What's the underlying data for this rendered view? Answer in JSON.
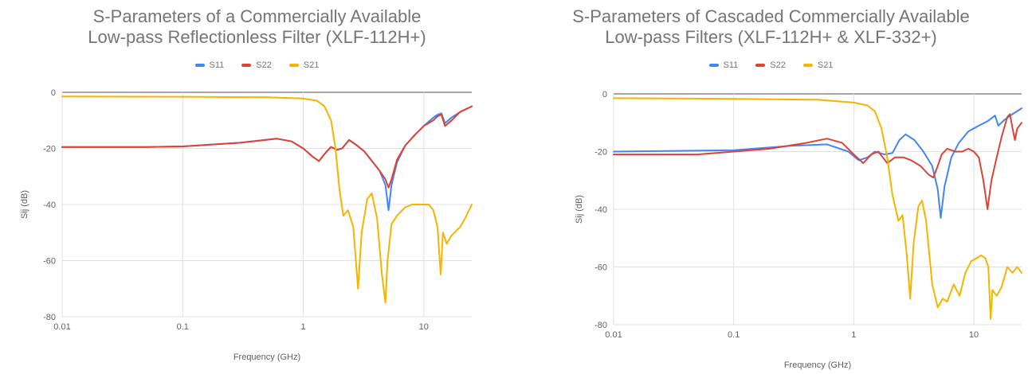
{
  "chart_data": [
    {
      "type": "line",
      "title_lines": [
        "S-Parameters of a Commercially Available",
        "Low-pass Reflectionless Filter (XLF-112H+)"
      ],
      "xlabel": "Frequency (GHz)",
      "ylabel": "Sij (dB)",
      "xscale": "log",
      "xlim": [
        0.01,
        25
      ],
      "ylim": [
        -80,
        0
      ],
      "xticks": [
        "0.01",
        "0.1",
        "1",
        "10"
      ],
      "yticks": [
        "0",
        "-20",
        "-40",
        "-60",
        "-80"
      ],
      "legend_position": "top",
      "series": [
        {
          "name": "S11",
          "color": "#4285f4",
          "points": [
            [
              0.01,
              -19.5
            ],
            [
              0.05,
              -19.5
            ],
            [
              0.1,
              -19.3
            ],
            [
              0.3,
              -18
            ],
            [
              0.6,
              -16.5
            ],
            [
              0.8,
              -17.5
            ],
            [
              1.0,
              -20
            ],
            [
              1.2,
              -23
            ],
            [
              1.35,
              -24.5
            ],
            [
              1.5,
              -22
            ],
            [
              1.7,
              -19.5
            ],
            [
              1.9,
              -20.5
            ],
            [
              2.1,
              -20
            ],
            [
              2.4,
              -17
            ],
            [
              2.8,
              -19
            ],
            [
              3.2,
              -21
            ],
            [
              3.8,
              -25
            ],
            [
              4.3,
              -28
            ],
            [
              4.8,
              -33
            ],
            [
              5.1,
              -42
            ],
            [
              5.4,
              -33
            ],
            [
              6.0,
              -25
            ],
            [
              7.0,
              -19
            ],
            [
              8.5,
              -15
            ],
            [
              10,
              -12
            ],
            [
              12,
              -9
            ],
            [
              13,
              -8
            ],
            [
              14,
              -7.5
            ],
            [
              15,
              -11
            ],
            [
              17,
              -9
            ],
            [
              20,
              -7
            ],
            [
              25,
              -5
            ]
          ]
        },
        {
          "name": "S22",
          "color": "#db4437",
          "points": [
            [
              0.01,
              -19.5
            ],
            [
              0.05,
              -19.5
            ],
            [
              0.1,
              -19.3
            ],
            [
              0.3,
              -18
            ],
            [
              0.6,
              -16.5
            ],
            [
              0.8,
              -17.5
            ],
            [
              1.0,
              -20
            ],
            [
              1.2,
              -23
            ],
            [
              1.35,
              -24.5
            ],
            [
              1.5,
              -22
            ],
            [
              1.7,
              -19.5
            ],
            [
              1.9,
              -20.5
            ],
            [
              2.1,
              -20
            ],
            [
              2.4,
              -17
            ],
            [
              2.8,
              -19
            ],
            [
              3.2,
              -21
            ],
            [
              3.8,
              -25
            ],
            [
              4.3,
              -28
            ],
            [
              4.8,
              -31
            ],
            [
              5.1,
              -34
            ],
            [
              5.4,
              -31
            ],
            [
              6.0,
              -24
            ],
            [
              7.0,
              -19
            ],
            [
              8.5,
              -15
            ],
            [
              10,
              -12
            ],
            [
              12,
              -10
            ],
            [
              13,
              -8.5
            ],
            [
              14,
              -8
            ],
            [
              15,
              -12
            ],
            [
              17,
              -10
            ],
            [
              20,
              -7
            ],
            [
              25,
              -5
            ]
          ]
        },
        {
          "name": "S21",
          "color": "#f4b400",
          "points": [
            [
              0.01,
              -1.5
            ],
            [
              0.1,
              -1.6
            ],
            [
              0.5,
              -1.8
            ],
            [
              1.0,
              -2.2
            ],
            [
              1.3,
              -3
            ],
            [
              1.5,
              -5
            ],
            [
              1.7,
              -10
            ],
            [
              1.85,
              -20
            ],
            [
              2.0,
              -35
            ],
            [
              2.15,
              -44
            ],
            [
              2.35,
              -42
            ],
            [
              2.6,
              -48
            ],
            [
              2.85,
              -70
            ],
            [
              3.05,
              -50
            ],
            [
              3.4,
              -38
            ],
            [
              3.7,
              -36
            ],
            [
              4.1,
              -45
            ],
            [
              4.5,
              -65
            ],
            [
              4.8,
              -75
            ],
            [
              5.0,
              -60
            ],
            [
              5.4,
              -47
            ],
            [
              6.0,
              -44
            ],
            [
              7.0,
              -41
            ],
            [
              8.0,
              -40
            ],
            [
              9.0,
              -40
            ],
            [
              10,
              -40
            ],
            [
              11,
              -40
            ],
            [
              12,
              -42
            ],
            [
              13,
              -48
            ],
            [
              13.8,
              -65
            ],
            [
              14.4,
              -50
            ],
            [
              15.5,
              -54
            ],
            [
              17,
              -51
            ],
            [
              20,
              -48
            ],
            [
              22,
              -45
            ],
            [
              25,
              -40
            ]
          ]
        }
      ]
    },
    {
      "type": "line",
      "title_lines": [
        "S-Parameters of Cascaded Commercially Available",
        "Low-pass Filters (XLF-112H+ & XLF-332+)"
      ],
      "xlabel": "Frequency (GHz)",
      "ylabel": "Sij (dB)",
      "xscale": "log",
      "xlim": [
        0.01,
        25
      ],
      "ylim": [
        -80,
        0
      ],
      "xticks": [
        "0.01",
        "0.1",
        "1",
        "10"
      ],
      "yticks": [
        "0",
        "-20",
        "-40",
        "-60",
        "-80"
      ],
      "legend_position": "top",
      "series": [
        {
          "name": "S11",
          "color": "#4285f4",
          "points": [
            [
              0.01,
              -20
            ],
            [
              0.1,
              -19.5
            ],
            [
              0.3,
              -18
            ],
            [
              0.6,
              -17.5
            ],
            [
              0.9,
              -20
            ],
            [
              1.1,
              -23
            ],
            [
              1.3,
              -22
            ],
            [
              1.5,
              -20
            ],
            [
              1.8,
              -21
            ],
            [
              2.1,
              -20.5
            ],
            [
              2.4,
              -16
            ],
            [
              2.7,
              -14
            ],
            [
              3.2,
              -16
            ],
            [
              3.8,
              -20
            ],
            [
              4.5,
              -25
            ],
            [
              5.0,
              -33
            ],
            [
              5.3,
              -43
            ],
            [
              5.7,
              -32
            ],
            [
              6.5,
              -22
            ],
            [
              7.5,
              -17
            ],
            [
              9,
              -13
            ],
            [
              11,
              -11
            ],
            [
              13,
              -9.5
            ],
            [
              15,
              -7.5
            ],
            [
              16,
              -11
            ],
            [
              18,
              -9
            ],
            [
              21,
              -7
            ],
            [
              25,
              -5
            ]
          ]
        },
        {
          "name": "S22",
          "color": "#db4437",
          "points": [
            [
              0.01,
              -21
            ],
            [
              0.05,
              -21
            ],
            [
              0.1,
              -20
            ],
            [
              0.2,
              -19
            ],
            [
              0.4,
              -17
            ],
            [
              0.6,
              -15.5
            ],
            [
              0.8,
              -17
            ],
            [
              1.0,
              -21
            ],
            [
              1.2,
              -24
            ],
            [
              1.4,
              -21
            ],
            [
              1.6,
              -20
            ],
            [
              1.9,
              -24
            ],
            [
              2.2,
              -22
            ],
            [
              2.6,
              -22
            ],
            [
              3.0,
              -23
            ],
            [
              3.6,
              -25
            ],
            [
              4.2,
              -28
            ],
            [
              4.6,
              -29
            ],
            [
              5.0,
              -25
            ],
            [
              5.4,
              -21
            ],
            [
              6.0,
              -19
            ],
            [
              7.0,
              -20
            ],
            [
              8.0,
              -20
            ],
            [
              9.0,
              -19
            ],
            [
              10,
              -20
            ],
            [
              11,
              -22
            ],
            [
              12,
              -30
            ],
            [
              13,
              -40
            ],
            [
              14,
              -30
            ],
            [
              15.5,
              -22
            ],
            [
              17,
              -15
            ],
            [
              19,
              -8
            ],
            [
              20,
              -7
            ],
            [
              21,
              -12
            ],
            [
              22,
              -16
            ],
            [
              23,
              -12
            ],
            [
              25,
              -10
            ]
          ]
        },
        {
          "name": "S21",
          "color": "#f4b400",
          "points": [
            [
              0.01,
              -1.5
            ],
            [
              0.1,
              -1.7
            ],
            [
              0.5,
              -2
            ],
            [
              1.0,
              -3
            ],
            [
              1.3,
              -4
            ],
            [
              1.5,
              -6
            ],
            [
              1.7,
              -12
            ],
            [
              1.9,
              -22
            ],
            [
              2.1,
              -35
            ],
            [
              2.35,
              -44
            ],
            [
              2.55,
              -42
            ],
            [
              2.75,
              -55
            ],
            [
              2.95,
              -71
            ],
            [
              3.15,
              -52
            ],
            [
              3.45,
              -39
            ],
            [
              3.7,
              -37
            ],
            [
              4.0,
              -44
            ],
            [
              4.5,
              -66
            ],
            [
              5.0,
              -74
            ],
            [
              5.5,
              -71
            ],
            [
              6.0,
              -72
            ],
            [
              6.8,
              -66
            ],
            [
              7.6,
              -70
            ],
            [
              8.5,
              -62
            ],
            [
              9.5,
              -58
            ],
            [
              10.5,
              -57
            ],
            [
              11.5,
              -56
            ],
            [
              12.5,
              -57
            ],
            [
              13.2,
              -60
            ],
            [
              13.8,
              -78
            ],
            [
              14.3,
              -68
            ],
            [
              15.5,
              -70
            ],
            [
              17,
              -67
            ],
            [
              19,
              -60
            ],
            [
              21,
              -62
            ],
            [
              23,
              -60
            ],
            [
              25,
              -62
            ]
          ]
        }
      ]
    }
  ]
}
